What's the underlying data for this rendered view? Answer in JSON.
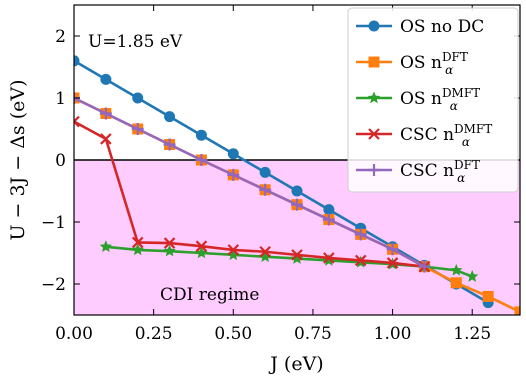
{
  "chart_data": {
    "type": "line",
    "xlabel": "J (eV)",
    "ylabel": "U − 3J − Δs (eV)",
    "xlim": [
      0.0,
      1.4
    ],
    "ylim": [
      -2.5,
      2.5
    ],
    "xticks": [
      0.0,
      0.25,
      0.5,
      0.75,
      1.0,
      1.25
    ],
    "xtick_labels": [
      "0.00",
      "0.25",
      "0.50",
      "0.75",
      "1.00",
      "1.25"
    ],
    "yticks": [
      2,
      1,
      0,
      -1,
      -2
    ],
    "ytick_labels": [
      "2",
      "1",
      "0",
      "−1",
      "−2"
    ],
    "grid": false,
    "legend_position": "top-right",
    "shaded_region": {
      "ymin": -2.5,
      "ymax": 0,
      "color": "#ffccff",
      "label": "CDI regime"
    },
    "zero_line": true,
    "annotations": [
      {
        "text": "U=1.85 eV",
        "position": "top-left"
      }
    ],
    "series": [
      {
        "name_base": "OS no DC",
        "name_sub": "",
        "name_sup": "",
        "color": "#1f77b4",
        "marker": "circle",
        "x": [
          0.0,
          0.1,
          0.2,
          0.3,
          0.4,
          0.5,
          0.6,
          0.7,
          0.8,
          0.9,
          1.0,
          1.1,
          1.2,
          1.3
        ],
        "y": [
          1.6,
          1.3,
          1.0,
          0.7,
          0.4,
          0.1,
          -0.2,
          -0.5,
          -0.8,
          -1.1,
          -1.4,
          -1.7,
          -2.0,
          -2.3
        ]
      },
      {
        "name_base": "OS n",
        "name_sub": "α",
        "name_sup": "DFT",
        "color": "#ff7f0e",
        "marker": "square",
        "x": [
          0.0,
          0.1,
          0.2,
          0.3,
          0.4,
          0.5,
          0.6,
          0.7,
          0.8,
          0.9,
          1.0,
          1.1,
          1.2,
          1.3,
          1.4
        ],
        "y": [
          1.0,
          0.75,
          0.5,
          0.25,
          0.0,
          -0.24,
          -0.48,
          -0.72,
          -0.96,
          -1.2,
          -1.44,
          -1.72,
          -1.98,
          -2.2,
          -2.45
        ]
      },
      {
        "name_base": "OS n",
        "name_sub": "α",
        "name_sup": "DMFT",
        "color": "#2ca02c",
        "marker": "star",
        "x": [
          0.1,
          0.2,
          0.3,
          0.4,
          0.5,
          0.6,
          0.7,
          0.8,
          0.9,
          1.0,
          1.1,
          1.2,
          1.25
        ],
        "y": [
          -1.4,
          -1.45,
          -1.47,
          -1.5,
          -1.53,
          -1.56,
          -1.59,
          -1.62,
          -1.65,
          -1.68,
          -1.72,
          -1.78,
          -1.88
        ]
      },
      {
        "name_base": "CSC n",
        "name_sub": "α",
        "name_sup": "DMFT",
        "color": "#d62728",
        "marker": "x",
        "x": [
          0.0,
          0.1,
          0.2,
          0.3,
          0.4,
          0.5,
          0.6,
          0.7,
          0.8,
          0.9,
          1.0,
          1.1
        ],
        "y": [
          0.62,
          0.34,
          -1.33,
          -1.34,
          -1.39,
          -1.45,
          -1.48,
          -1.53,
          -1.58,
          -1.62,
          -1.66,
          -1.72
        ]
      },
      {
        "name_base": "CSC n",
        "name_sub": "α",
        "name_sup": "DFT",
        "color": "#9467bd",
        "marker": "plus",
        "x": [
          0.0,
          0.1,
          0.2,
          0.3,
          0.4,
          0.5,
          0.6,
          0.7,
          0.8,
          0.9,
          1.0,
          1.1
        ],
        "y": [
          1.0,
          0.75,
          0.5,
          0.25,
          0.0,
          -0.24,
          -0.48,
          -0.72,
          -0.96,
          -1.2,
          -1.44,
          -1.72
        ]
      }
    ]
  }
}
